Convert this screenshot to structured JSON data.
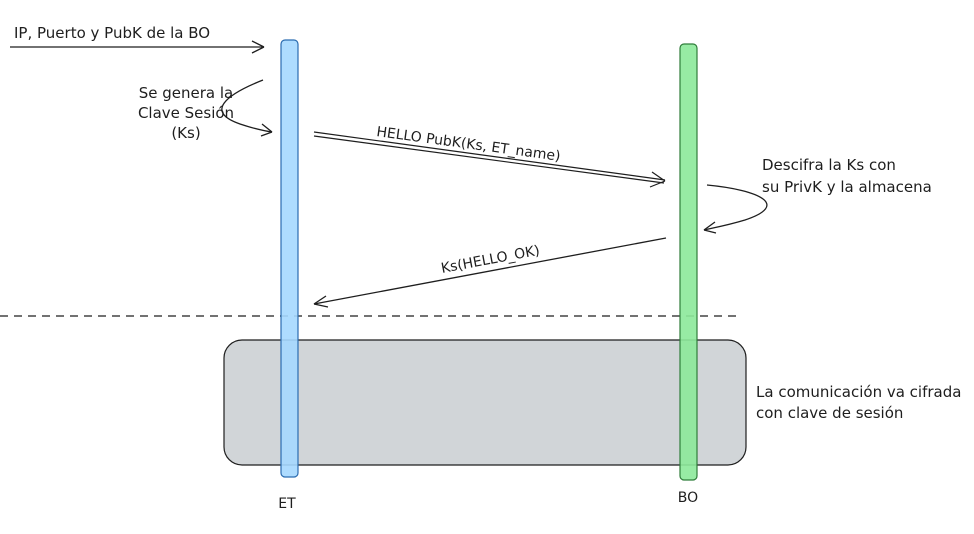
{
  "diagram": {
    "lifelines": [
      {
        "id": "et",
        "label": "ET",
        "color": "#a5d8ff",
        "stroke": "#4a90d9"
      },
      {
        "id": "bo",
        "label": "BO",
        "color": "#8ce99a",
        "stroke": "#3aa64a"
      }
    ],
    "incoming_message": "IP, Puerto y PubK de la BO",
    "note_left": [
      "Se genera la",
      "Clave Sesión",
      "(Ks)"
    ],
    "message_hello": "HELLO PubK(Ks, ET_name)",
    "note_right": [
      "Descifra la Ks con",
      "su PrivK y la almacena"
    ],
    "message_ok": "Ks(HELLO_OK)",
    "encrypted_zone_label": [
      "La comunicación va cifrada",
      "con clave de sesión"
    ],
    "zone_color": "#9aa1a8"
  }
}
